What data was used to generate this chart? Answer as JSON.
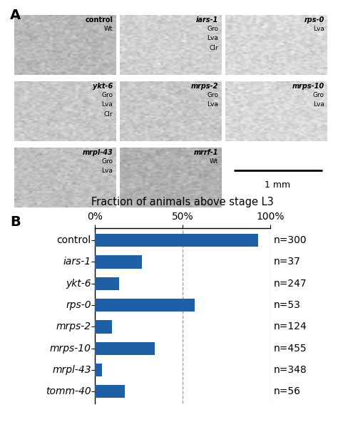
{
  "panel_b": {
    "title": "Fraction of animals above stage L3",
    "categories": [
      "control",
      "iars-1",
      "ykt-6",
      "rps-0",
      "mrps-2",
      "mrps-10",
      "mrpl-43",
      "tomm-40"
    ],
    "italic_labels": [
      false,
      true,
      true,
      true,
      true,
      true,
      true,
      true
    ],
    "values": [
      93,
      27,
      14,
      57,
      10,
      34,
      4,
      17
    ],
    "n_labels": [
      "n=300",
      "n=37",
      "n=247",
      "n=53",
      "n=124",
      "n=455",
      "n=348",
      "n=56"
    ],
    "bar_color": "#1f5fa6",
    "xlim": [
      0,
      100
    ],
    "xticks": [
      0,
      50,
      100
    ],
    "xticklabels": [
      "0%",
      "50%",
      "100%"
    ],
    "dashed_lines": [
      0,
      50,
      100
    ],
    "bar_height": 0.6,
    "title_fontsize": 10.5,
    "label_fontsize": 10,
    "tick_fontsize": 10,
    "n_fontsize": 10
  },
  "panel_a": {
    "label": "A",
    "label_fontsize": 14,
    "cells": [
      {
        "row": 0,
        "col": 0,
        "gene": "control",
        "italic": false,
        "phenotypes": [
          "Wt"
        ],
        "bg": "#b8b8b8"
      },
      {
        "row": 0,
        "col": 1,
        "gene": "iars-1",
        "italic": true,
        "phenotypes": [
          "Gro",
          "Lva",
          "Clr"
        ],
        "bg": "#d0d0d0"
      },
      {
        "row": 0,
        "col": 2,
        "gene": "rps-0",
        "italic": true,
        "phenotypes": [
          "Lva"
        ],
        "bg": "#d8d8d8"
      },
      {
        "row": 1,
        "col": 0,
        "gene": "ykt-6",
        "italic": true,
        "phenotypes": [
          "Gro",
          "Lva",
          "Clr"
        ],
        "bg": "#c8c8c8"
      },
      {
        "row": 1,
        "col": 1,
        "gene": "mrps-2",
        "italic": true,
        "phenotypes": [
          "Gro",
          "Lva"
        ],
        "bg": "#c8c8c8"
      },
      {
        "row": 1,
        "col": 2,
        "gene": "mrps-10",
        "italic": true,
        "phenotypes": [
          "Gro",
          "Lva"
        ],
        "bg": "#d8d8d8"
      },
      {
        "row": 2,
        "col": 0,
        "gene": "mrpl-43",
        "italic": true,
        "phenotypes": [
          "Gro",
          "Lva"
        ],
        "bg": "#c0c0c0"
      },
      {
        "row": 2,
        "col": 1,
        "gene": "mrrf-1",
        "italic": true,
        "phenotypes": [
          "Wt"
        ],
        "bg": "#b0b0b0"
      }
    ],
    "grid_rows": 3,
    "grid_cols": 3,
    "scale_bar_text": "1 mm"
  },
  "figure_bg": "#ffffff",
  "panel_b_label": "B",
  "panel_b_label_fontsize": 14
}
